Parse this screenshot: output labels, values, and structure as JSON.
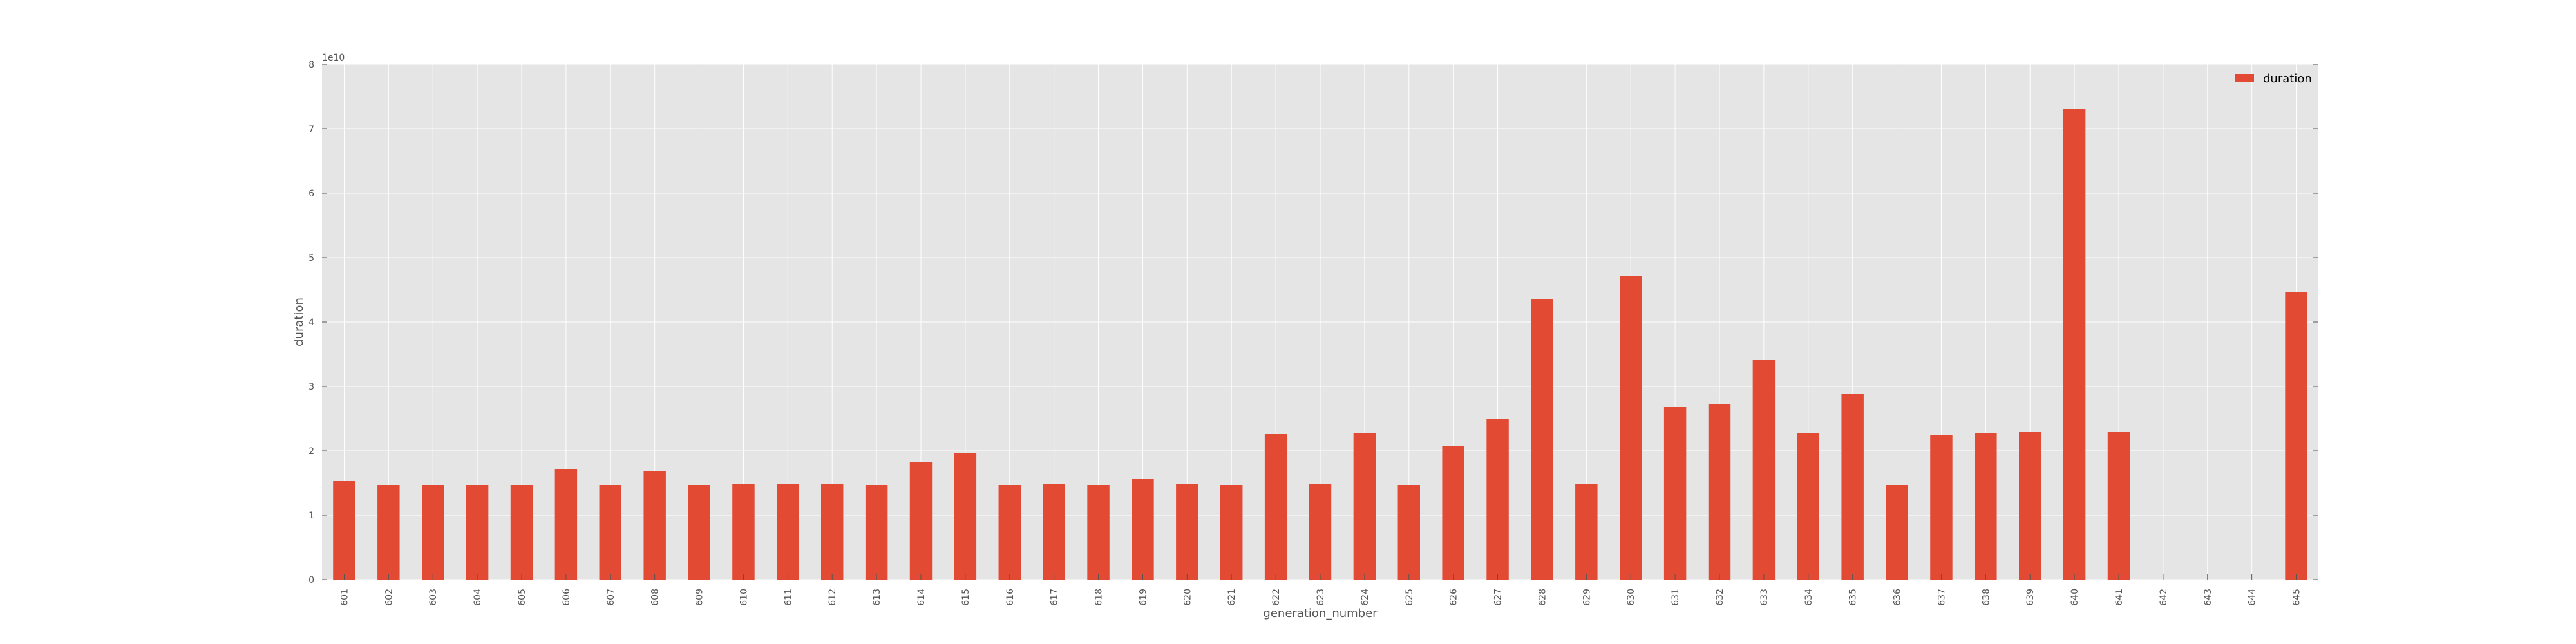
{
  "chart_data": {
    "type": "bar",
    "xlabel": "generation_number",
    "ylabel": "duration",
    "y_multiplier_label": "1e10",
    "ylim": [
      0,
      8
    ],
    "yticks": [
      "0",
      "1",
      "2",
      "3",
      "4",
      "5",
      "6",
      "7",
      "8"
    ],
    "grid": true,
    "legend_position": "top-right",
    "categories": [
      "601",
      "602",
      "603",
      "604",
      "605",
      "606",
      "607",
      "608",
      "609",
      "610",
      "611",
      "612",
      "613",
      "614",
      "615",
      "616",
      "617",
      "618",
      "619",
      "620",
      "621",
      "622",
      "623",
      "624",
      "625",
      "626",
      "627",
      "628",
      "629",
      "630",
      "631",
      "632",
      "633",
      "634",
      "635",
      "636",
      "637",
      "638",
      "639",
      "640",
      "641",
      "642",
      "643",
      "644",
      "645"
    ],
    "series": [
      {
        "name": "duration",
        "color": "#e24a33",
        "values": [
          1.53,
          1.47,
          1.47,
          1.47,
          1.47,
          1.72,
          1.47,
          1.69,
          1.47,
          1.48,
          1.48,
          1.48,
          1.47,
          1.83,
          1.97,
          1.47,
          1.49,
          1.47,
          1.56,
          1.48,
          1.47,
          2.26,
          1.48,
          2.27,
          1.47,
          2.08,
          2.49,
          4.36,
          1.49,
          4.71,
          2.68,
          2.73,
          3.41,
          2.27,
          2.88,
          1.47,
          2.24,
          2.27,
          2.29,
          7.3,
          2.29,
          0,
          0,
          0,
          4.47
        ]
      }
    ],
    "colors": {
      "plot_background": "#e5e5e5",
      "grid": "#ffffff",
      "bar": "#e24a33",
      "tick_text": "#555555"
    }
  }
}
